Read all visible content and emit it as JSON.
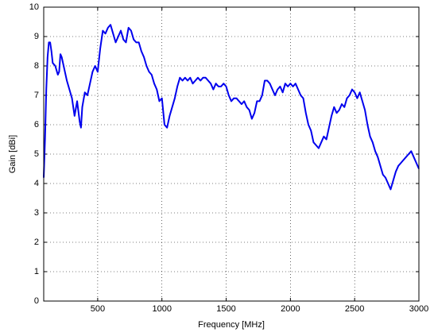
{
  "chart_data": {
    "type": "line",
    "xlabel": "Frequency [MHz]",
    "ylabel": "Gain [dBi]",
    "xlim": [
      80,
      3000
    ],
    "ylim": [
      0,
      10
    ],
    "xticks": [
      500,
      1000,
      1500,
      2000,
      2500,
      3000
    ],
    "yticks": [
      0,
      1,
      2,
      3,
      4,
      5,
      6,
      7,
      8,
      9,
      10
    ],
    "grid": true,
    "x": [
      80,
      90,
      100,
      110,
      120,
      130,
      140,
      150,
      170,
      190,
      200,
      210,
      220,
      240,
      260,
      280,
      300,
      320,
      340,
      360,
      370,
      380,
      400,
      420,
      440,
      460,
      480,
      500,
      520,
      540,
      560,
      580,
      600,
      620,
      640,
      660,
      680,
      700,
      720,
      740,
      760,
      780,
      800,
      820,
      840,
      860,
      880,
      900,
      920,
      940,
      960,
      980,
      1000,
      1020,
      1040,
      1060,
      1080,
      1100,
      1120,
      1140,
      1160,
      1180,
      1200,
      1220,
      1240,
      1260,
      1280,
      1300,
      1320,
      1340,
      1360,
      1380,
      1400,
      1420,
      1440,
      1460,
      1480,
      1500,
      1520,
      1540,
      1560,
      1580,
      1600,
      1620,
      1640,
      1660,
      1680,
      1700,
      1720,
      1740,
      1760,
      1780,
      1800,
      1820,
      1840,
      1860,
      1880,
      1900,
      1920,
      1940,
      1960,
      1980,
      2000,
      2020,
      2040,
      2060,
      2080,
      2100,
      2120,
      2140,
      2160,
      2180,
      2200,
      2220,
      2240,
      2260,
      2280,
      2300,
      2320,
      2340,
      2360,
      2380,
      2400,
      2420,
      2440,
      2460,
      2480,
      2500,
      2520,
      2540,
      2560,
      2580,
      2600,
      2620,
      2640,
      2660,
      2680,
      2700,
      2720,
      2740,
      2760,
      2780,
      2800,
      2820,
      2840,
      2860,
      2880,
      2900,
      2920,
      2940,
      2960,
      2980,
      3000
    ],
    "series": [
      {
        "color": "#0000ee",
        "values": [
          4.2,
          5.5,
          7.2,
          8.3,
          8.8,
          8.8,
          8.5,
          8.1,
          8.0,
          7.7,
          7.8,
          8.4,
          8.3,
          7.9,
          7.5,
          7.2,
          6.9,
          6.3,
          6.8,
          6.1,
          5.9,
          6.6,
          7.1,
          7.0,
          7.4,
          7.8,
          8.0,
          7.8,
          8.6,
          9.2,
          9.1,
          9.3,
          9.4,
          9.1,
          8.8,
          9.0,
          9.2,
          8.9,
          8.8,
          9.3,
          9.2,
          8.9,
          8.8,
          8.8,
          8.5,
          8.3,
          8.0,
          7.8,
          7.7,
          7.4,
          7.2,
          6.8,
          6.9,
          6.0,
          5.9,
          6.3,
          6.6,
          6.9,
          7.3,
          7.6,
          7.5,
          7.6,
          7.5,
          7.6,
          7.4,
          7.5,
          7.6,
          7.5,
          7.6,
          7.6,
          7.5,
          7.4,
          7.2,
          7.4,
          7.3,
          7.3,
          7.4,
          7.3,
          7.0,
          6.8,
          6.9,
          6.9,
          6.8,
          6.7,
          6.8,
          6.6,
          6.5,
          6.2,
          6.4,
          6.8,
          6.8,
          7.0,
          7.5,
          7.5,
          7.4,
          7.2,
          7.0,
          7.2,
          7.3,
          7.1,
          7.4,
          7.3,
          7.4,
          7.3,
          7.4,
          7.2,
          7.0,
          6.9,
          6.4,
          6.0,
          5.8,
          5.4,
          5.3,
          5.2,
          5.4,
          5.6,
          5.5,
          5.9,
          6.3,
          6.6,
          6.4,
          6.5,
          6.7,
          6.6,
          6.9,
          7.0,
          7.2,
          7.1,
          6.9,
          7.1,
          6.8,
          6.5,
          6.0,
          5.6,
          5.4,
          5.1,
          4.9,
          4.6,
          4.3,
          4.2,
          4.0,
          3.8,
          4.1,
          4.4,
          4.6,
          4.7,
          4.8,
          4.9,
          5.0,
          5.1,
          4.9,
          4.7,
          4.5
        ]
      }
    ]
  }
}
